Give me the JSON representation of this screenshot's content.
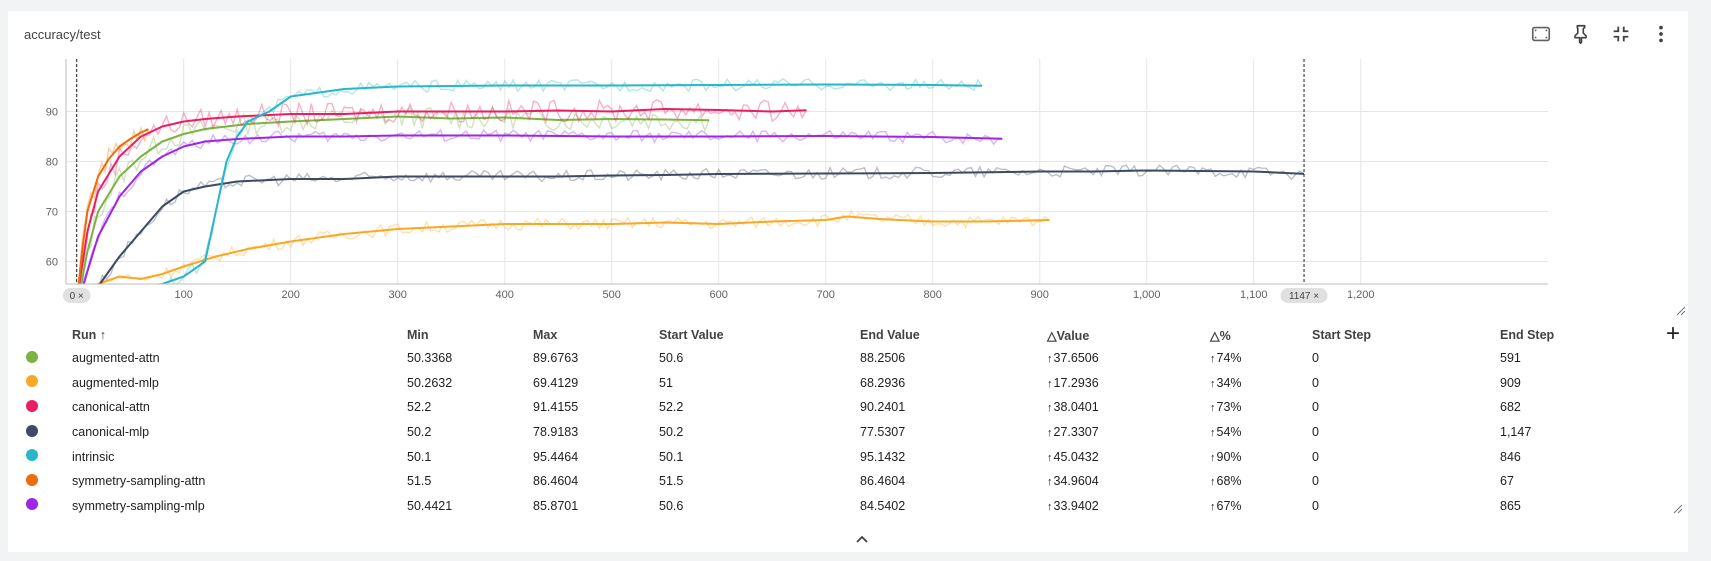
{
  "card": {
    "title": "accuracy/test"
  },
  "toolbar": {
    "icons": [
      "fit-domain-icon",
      "pin-icon",
      "collapse-icon",
      "more-vert-icon"
    ]
  },
  "range_markers": {
    "start": "0",
    "end": "1147"
  },
  "chart_data": {
    "type": "line",
    "title": "accuracy/test",
    "xlabel": "",
    "ylabel": "",
    "xlim": [
      -10,
      1375
    ],
    "ylim": [
      55.5,
      100.5
    ],
    "x_ticks": [
      "0",
      "100",
      "200",
      "300",
      "400",
      "500",
      "600",
      "700",
      "800",
      "900",
      "1,000",
      "1,100",
      "1,200"
    ],
    "x_tick_values": [
      0,
      100,
      200,
      300,
      400,
      500,
      600,
      700,
      800,
      900,
      1000,
      1100,
      1200
    ],
    "y_ticks": [
      "60",
      "70",
      "80",
      "90"
    ],
    "y_tick_values": [
      60,
      70,
      80,
      90
    ],
    "grid": true,
    "series": [
      {
        "name": "augmented-attn",
        "color": "#7cb342",
        "x": [
          0,
          10,
          20,
          40,
          60,
          80,
          100,
          120,
          140,
          160,
          200,
          250,
          300,
          350,
          400,
          450,
          500,
          550,
          591
        ],
        "y": [
          50.6,
          62,
          70,
          77,
          81,
          84,
          85.5,
          86.5,
          87,
          87.5,
          88,
          88.5,
          89,
          88.6,
          88.8,
          88.3,
          88.5,
          88.4,
          88.25
        ]
      },
      {
        "name": "augmented-mlp",
        "color": "#f9a825",
        "x": [
          0,
          20,
          40,
          60,
          80,
          100,
          130,
          160,
          200,
          250,
          300,
          350,
          400,
          450,
          500,
          550,
          600,
          650,
          700,
          720,
          750,
          800,
          850,
          909
        ],
        "y": [
          51,
          55.5,
          57,
          56.5,
          57.5,
          59,
          61,
          62.5,
          64,
          65.5,
          66.5,
          67,
          67.5,
          67.5,
          67.5,
          67.8,
          67.5,
          68,
          68.3,
          69,
          68.5,
          68,
          68,
          68.29
        ]
      },
      {
        "name": "canonical-attn",
        "color": "#e91e63",
        "x": [
          0,
          10,
          20,
          40,
          60,
          80,
          100,
          120,
          150,
          200,
          250,
          300,
          350,
          400,
          450,
          500,
          550,
          600,
          650,
          682
        ],
        "y": [
          52.2,
          66,
          74,
          81,
          85,
          87,
          88,
          88.5,
          89,
          89.5,
          89.5,
          90,
          90,
          90,
          90.2,
          90,
          90.5,
          90.3,
          90,
          90.24
        ]
      },
      {
        "name": "canonical-mlp",
        "color": "#3d4a62",
        "x": [
          0,
          10,
          20,
          40,
          60,
          80,
          100,
          120,
          150,
          200,
          250,
          300,
          350,
          400,
          450,
          500,
          550,
          600,
          700,
          800,
          900,
          950,
          1000,
          1100,
          1147
        ],
        "y": [
          50.2,
          52,
          55,
          61,
          66,
          71,
          74,
          75,
          76,
          76.5,
          76.5,
          77,
          77,
          77,
          77,
          77.2,
          77.3,
          77.5,
          77.6,
          77.7,
          78,
          78,
          78.2,
          78,
          77.53
        ]
      },
      {
        "name": "intrinsic",
        "color": "#29b6c6",
        "x": [
          0,
          20,
          40,
          60,
          80,
          100,
          120,
          130,
          140,
          150,
          160,
          180,
          200,
          250,
          300,
          400,
          500,
          600,
          700,
          800,
          846
        ],
        "y": [
          50.1,
          52,
          54,
          55,
          55.5,
          57,
          60,
          70,
          80,
          85,
          88,
          90,
          93,
          94.5,
          95,
          95.2,
          95.2,
          95.3,
          95.4,
          95.3,
          95.14
        ]
      },
      {
        "name": "symmetry-sampling-attn",
        "color": "#ef6c00",
        "x": [
          0,
          5,
          10,
          20,
          30,
          40,
          50,
          60,
          67
        ],
        "y": [
          51.5,
          62,
          70,
          77,
          80.5,
          83,
          84.5,
          85.8,
          86.46
        ]
      },
      {
        "name": "symmetry-sampling-mlp",
        "color": "#9c27e6",
        "x": [
          0,
          10,
          20,
          40,
          60,
          80,
          100,
          120,
          150,
          200,
          250,
          300,
          400,
          500,
          600,
          700,
          800,
          865
        ],
        "y": [
          50.6,
          58,
          65,
          73,
          78,
          81,
          83,
          84,
          84.5,
          85,
          85,
          85.2,
          85.2,
          85,
          85,
          85.1,
          84.9,
          84.54
        ]
      }
    ]
  },
  "table": {
    "columns": [
      "Run ↑",
      "Min",
      "Max",
      "Start Value",
      "End Value",
      "△Value",
      "△%",
      "Start Step",
      "End Step"
    ],
    "rows": [
      {
        "color": "#7cb342",
        "run": "augmented-attn",
        "min": "50.3368",
        "max": "89.6763",
        "start": "50.6",
        "end": "88.2506",
        "dvalue": "37.6506",
        "dpct": "74%",
        "start_step": "0",
        "end_step": "591"
      },
      {
        "color": "#f9a825",
        "run": "augmented-mlp",
        "min": "50.2632",
        "max": "69.4129",
        "start": "51",
        "end": "68.2936",
        "dvalue": "17.2936",
        "dpct": "34%",
        "start_step": "0",
        "end_step": "909"
      },
      {
        "color": "#e91e63",
        "run": "canonical-attn",
        "min": "52.2",
        "max": "91.4155",
        "start": "52.2",
        "end": "90.2401",
        "dvalue": "38.0401",
        "dpct": "73%",
        "start_step": "0",
        "end_step": "682"
      },
      {
        "color": "#3d4a62",
        "run": "canonical-mlp",
        "min": "50.2",
        "max": "78.9183",
        "start": "50.2",
        "end": "77.5307",
        "dvalue": "27.3307",
        "dpct": "54%",
        "start_step": "0",
        "end_step": "1,147"
      },
      {
        "color": "#29b6c6",
        "run": "intrinsic",
        "min": "50.1",
        "max": "95.4464",
        "start": "50.1",
        "end": "95.1432",
        "dvalue": "45.0432",
        "dpct": "90%",
        "start_step": "0",
        "end_step": "846"
      },
      {
        "color": "#ef6c00",
        "run": "symmetry-sampling-attn",
        "min": "51.5",
        "max": "86.4604",
        "start": "51.5",
        "end": "86.4604",
        "dvalue": "34.9604",
        "dpct": "68%",
        "start_step": "0",
        "end_step": "67"
      },
      {
        "color": "#9c27e6",
        "run": "symmetry-sampling-mlp",
        "min": "50.4421",
        "max": "85.8701",
        "start": "50.6",
        "end": "84.5402",
        "dvalue": "33.9402",
        "dpct": "67%",
        "start_step": "0",
        "end_step": "865"
      }
    ]
  }
}
